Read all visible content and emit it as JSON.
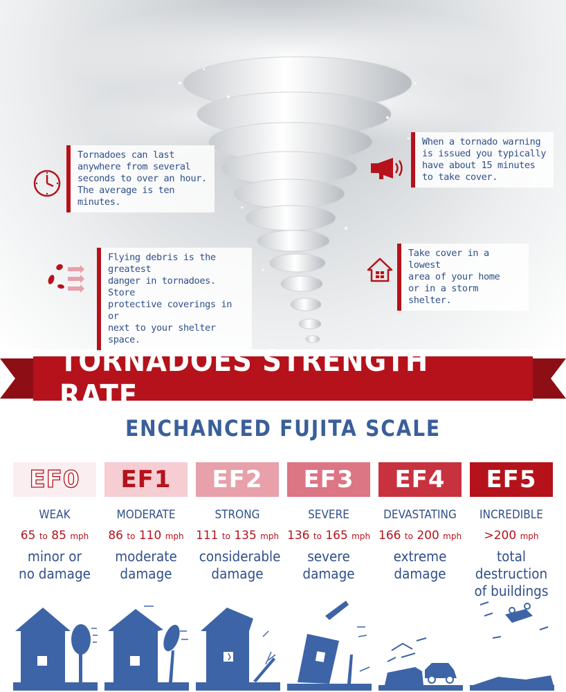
{
  "facts": [
    {
      "icon": "clock-icon",
      "text": "Tornadoes can last\nanywhere from several\nseconds to over an hour.\nThe average is ten minutes."
    },
    {
      "icon": "megaphone-icon",
      "text": "When a tornado warning\nis issued you typically\nhave about 15 minutes\nto take cover."
    },
    {
      "icon": "debris-icon",
      "text": "Flying debris is the greatest\ndanger in tornadoes. Store\nprotective coverings in or\nnext to your shelter space."
    },
    {
      "icon": "house-shelter-icon",
      "text": "Take cover in a lowest\narea of your home\nor in a storm shelter."
    }
  ],
  "title": "TORNADOES STRENGTH RATE",
  "subtitle": "ENCHANCED FUJITA SCALE",
  "levels": [
    {
      "code": "EF0",
      "name": "WEAK",
      "speed_low": "65",
      "speed_to": "to",
      "speed_high": "85",
      "unit": "mph",
      "damage": "minor or\nno damage",
      "fill": "#fbeef0",
      "text_color": "#ffffff"
    },
    {
      "code": "EF1",
      "name": "MODERATE",
      "speed_low": "86",
      "speed_to": "to",
      "speed_high": "110",
      "unit": "mph",
      "damage": "moderate\ndamage",
      "fill": "#f5cdd3",
      "text_color": "#b5121b"
    },
    {
      "code": "EF2",
      "name": "STRONG",
      "speed_low": "111",
      "speed_to": "to",
      "speed_high": "135",
      "unit": "mph",
      "damage": "considerable\ndamage",
      "fill": "#e8a0aa",
      "text_color": "#ffffff"
    },
    {
      "code": "EF3",
      "name": "SEVERE",
      "speed_low": "136",
      "speed_to": "to",
      "speed_high": "165",
      "unit": "mph",
      "damage": "severe\ndamage",
      "fill": "#dc7584",
      "text_color": "#ffffff"
    },
    {
      "code": "EF4",
      "name": "DEVASTATING",
      "speed_low": "166",
      "speed_to": "to",
      "speed_high": "200",
      "unit": "mph",
      "damage": "extreme\ndamage",
      "fill": "#c8323f",
      "text_color": "#ffffff"
    },
    {
      "code": "EF5",
      "name": "INCREDIBLE",
      "speed_low": ">200",
      "speed_to": "",
      "speed_high": "",
      "unit": "mph",
      "damage": "total destruction\nof buildings",
      "fill": "#b5121b",
      "text_color": "#ffffff"
    }
  ],
  "colors": {
    "accent_red": "#b5121b",
    "blue": "#3a5f9a",
    "illus_blue": "#3d64a6"
  }
}
